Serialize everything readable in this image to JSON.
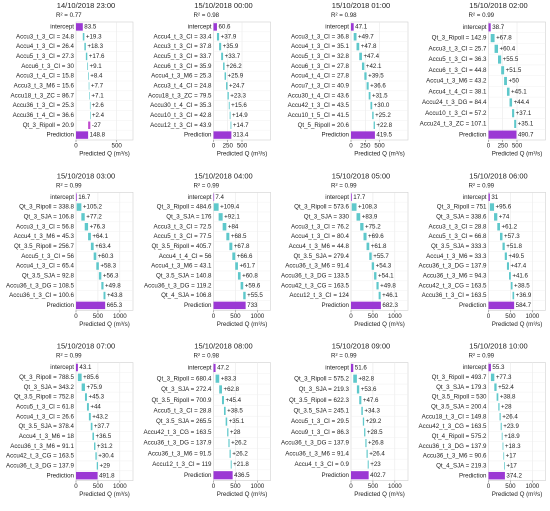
{
  "chart_data": [
    {
      "type": "waterfall",
      "title": "14/10/2018 23:00",
      "subtitle": "R² = 0.77",
      "x_label": "Predicted Q (m³/s)",
      "categories": [
        "intercept",
        "Accu3_t_3_CI = 24.8",
        "Accu4_t_3_CI = 26.4",
        "Accu5_t_3_CI = 27.3",
        "Accu6_t_3_CI = 30",
        "Accu3_t_4_CI = 15.8",
        "Accu3_t_3_M6 = 15.6",
        "Accu18_t_3_ZC = 86.7",
        "Accu36_t_3_CI = 25.3",
        "Accu36_t_4_CI = 36.6",
        "Qt_3_Ripoll = 20.9",
        "Prediction"
      ],
      "values": [
        83.5,
        19.3,
        18.3,
        17.6,
        9.1,
        8.4,
        7.7,
        7.1,
        2.6,
        2.4,
        -27,
        148.8
      ],
      "value_labels": [
        "83.5",
        "+19.3",
        "+18.3",
        "+17.6",
        "+9.1",
        "+8.4",
        "+7.7",
        "+7.1",
        "+2.6",
        "+2.4",
        "-27",
        "148.8"
      ],
      "xlim": [
        0,
        700
      ],
      "xticks": [
        0,
        500
      ],
      "total_color": "#9b38d4",
      "increase_color": "#5ec8cb",
      "decrease_color": "#c04ccf",
      "grid": true
    },
    {
      "type": "waterfall",
      "title": "15/10/2018 00:00",
      "subtitle": "R² = 0.98",
      "x_label": "Predicted Q (m³/s)",
      "categories": [
        "intercept",
        "Accu4_t_3_CI = 33.4",
        "Accu3_t_3_CI = 37.8",
        "Accu5_t_3_CI = 33.7",
        "Accu6_t_3_CI = 35.9",
        "Accu4_t_3_M6 = 25.3",
        "Accu3_t_4_CI = 24.8",
        "Accu18_t_3_ZC = 79.5",
        "Accu30_t_4_CI = 35.3",
        "Accu10_t_3_CI = 42.8",
        "Accu12_t_3_CI = 43.9",
        "Prediction"
      ],
      "values": [
        60.6,
        37.9,
        35.9,
        33.7,
        26.2,
        25.9,
        24.7,
        23.3,
        15.6,
        14.9,
        14.7,
        313.4
      ],
      "value_labels": [
        "60.6",
        "+37.9",
        "+35.9",
        "+33.7",
        "+26.2",
        "+25.9",
        "+24.7",
        "+23.3",
        "+15.6",
        "+14.9",
        "+14.7",
        "313.4"
      ],
      "xlim": [
        0,
        1000
      ],
      "xticks": [
        0,
        250,
        500
      ],
      "total_color": "#9b38d4",
      "increase_color": "#5ec8cb",
      "decrease_color": "#c04ccf",
      "grid": true
    },
    {
      "type": "waterfall",
      "title": "15/10/2018 01:00",
      "subtitle": "R² = 0.98",
      "x_label": "Predicted Q (m³/s)",
      "categories": [
        "intercept",
        "Accu3_t_3_CI = 36.8",
        "Accu4_t_3_CI = 35.1",
        "Accu5_t_3_CI = 32.8",
        "Accu6_t_3_CI = 27.8",
        "Accu4_t_4_CI = 27.8",
        "Accu7_t_3_CI = 40.9",
        "Accu30_t_4_CI = 43.6",
        "Accu42_t_3_CI = 43.5",
        "Accu10_t_5_CI = 41.5",
        "Qt_5_Ripoll = 20.6",
        "Prediction"
      ],
      "values": [
        47.1,
        49.7,
        47.8,
        47.4,
        42.1,
        39.5,
        36.6,
        31.5,
        30.0,
        25.2,
        22.8,
        419.5
      ],
      "value_labels": [
        "47.1",
        "+49.7",
        "+47.8",
        "+47.4",
        "+42.1",
        "+39.5",
        "+36.6",
        "+31.5",
        "+30.0",
        "+25.2",
        "+22.8",
        "419.5"
      ],
      "xlim": [
        0,
        1000
      ],
      "xticks": [
        0,
        250,
        500
      ],
      "total_color": "#9b38d4",
      "increase_color": "#5ec8cb",
      "decrease_color": "#c04ccf",
      "grid": true
    },
    {
      "type": "waterfall",
      "title": "15/10/2018 02:00",
      "subtitle": "R² = 0.99",
      "x_label": "Predicted Q (m³/s)",
      "categories": [
        "intercept",
        "Qt_3_Ripoll = 142.9",
        "Accu3_t_3_CI = 25.7",
        "Accu5_t_3_CI = 36.3",
        "Accu6_t_3_CI = 44.8",
        "Accu4_t_3_M6 = 43.2",
        "Accu4_t_4_CI = 38.1",
        "Accu24_t_3_DG = 84.4",
        "Accu10_t_3_CI = 57.2",
        "Accu24_t_3_ZC = 107.1",
        "Prediction"
      ],
      "values": [
        38.7,
        67.8,
        60.4,
        55.5,
        51.5,
        50,
        45.1,
        44.4,
        37.1,
        35.1,
        490.7
      ],
      "value_labels": [
        "38.7",
        "+67.8",
        "+60.4",
        "+55.5",
        "+51.5",
        "+50",
        "+45.1",
        "+44.4",
        "+37.1",
        "+35.1",
        "490.7"
      ],
      "xlim": [
        0,
        1000
      ],
      "xticks": [
        0,
        250,
        500
      ],
      "total_color": "#9b38d4",
      "increase_color": "#5ec8cb",
      "decrease_color": "#c04ccf",
      "grid": true
    },
    {
      "type": "waterfall",
      "title": "15/10/2018 03:00",
      "subtitle": "R² = 0.99",
      "x_label": "Predicted Q (m³/s)",
      "categories": [
        "intercept",
        "Qt_3_Ripoll = 338.8",
        "Qt_3_SJA = 106.8",
        "Accu3_t_3_CI = 56.8",
        "Accu4_t_3_M6 = 45.3",
        "Qt_3.5_Ripoll = 256.7",
        "Accu5_t_3_CI = 56",
        "Accu4_t_3_CI = 65.4",
        "Qt_3.5_SJA = 92.8",
        "Accu36_t_3_DG = 108.5",
        "Accu36_t_3_CI = 100.6",
        "Prediction"
      ],
      "values": [
        16.7,
        105.2,
        77.2,
        76.3,
        64.1,
        63.4,
        60.3,
        58.3,
        56.3,
        49.8,
        43.8,
        665.3
      ],
      "value_labels": [
        "16.7",
        "+105.2",
        "+77.2",
        "+76.3",
        "+64.1",
        "+63.4",
        "+60.3",
        "+58.3",
        "+56.3",
        "+49.8",
        "+43.8",
        "665.3"
      ],
      "xlim": [
        0,
        1300
      ],
      "xticks": [
        0,
        500,
        1000
      ],
      "total_color": "#9b38d4",
      "increase_color": "#5ec8cb",
      "decrease_color": "#c04ccf",
      "grid": true
    },
    {
      "type": "waterfall",
      "title": "15/10/2018 04:00",
      "subtitle": "R² = 0.99",
      "x_label": "Predicted Q (m³/s)",
      "categories": [
        "intercept",
        "Qt_3_Ripoll = 484.6",
        "Qt_3_SJA = 176",
        "Accu3_t_3_CI = 72.5",
        "Accu5_t_3_CI = 77.5",
        "Qt_3.5_Ripoll = 405.7",
        "Accu4_t_4_CI = 56",
        "Accu4_t_3_M6 = 43.1",
        "Qt_3.5_SJA = 140.8",
        "Accu36_t_3_DG = 119.2",
        "Qt_4_SJA = 106.8",
        "Prediction"
      ],
      "values": [
        7.4,
        109.4,
        92.1,
        84,
        68.5,
        67.8,
        66.6,
        61.7,
        60.8,
        59.6,
        55.5,
        733
      ],
      "value_labels": [
        "7.4",
        "+109.4",
        "+92.1",
        "+84",
        "+68.5",
        "+67.8",
        "+66.6",
        "+61.7",
        "+60.8",
        "+59.6",
        "+55.5",
        "733"
      ],
      "xlim": [
        0,
        1300
      ],
      "xticks": [
        0,
        500,
        1000
      ],
      "total_color": "#9b38d4",
      "increase_color": "#5ec8cb",
      "decrease_color": "#c04ccf",
      "grid": true
    },
    {
      "type": "waterfall",
      "title": "15/10/2018 05:00",
      "subtitle": "R² = 0.99",
      "x_label": "Predicted Q (m³/s)",
      "categories": [
        "intercept",
        "Qt_3_Ripoll = 573.6",
        "Qt_3_SJA = 330",
        "Accu3_t_3_CI = 76.2",
        "Accu4_t_3_CI = 80.4",
        "Accu4_t_3_M6 = 44.8",
        "Qt_3.5_SJA = 279.4",
        "Accu36_t_3_M6 = 91.4",
        "Accu36_t_3_DG = 133.5",
        "Accu42_t_3_CG = 163.5",
        "Accu12_t_3_CI = 124",
        "Prediction"
      ],
      "values": [
        17.7,
        108.3,
        83.9,
        75.2,
        69.6,
        61.8,
        55.7,
        54.3,
        54.1,
        49.8,
        46.1,
        682.3
      ],
      "value_labels": [
        "17.7",
        "+108.3",
        "+83.9",
        "+75.2",
        "+69.6",
        "+61.8",
        "+55.7",
        "+54.3",
        "+54.1",
        "+49.8",
        "+46.1",
        "682.3"
      ],
      "xlim": [
        0,
        1300
      ],
      "xticks": [
        0,
        500,
        1000
      ],
      "total_color": "#9b38d4",
      "increase_color": "#5ec8cb",
      "decrease_color": "#c04ccf",
      "grid": true
    },
    {
      "type": "waterfall",
      "title": "15/10/2018 06:00",
      "subtitle": "R² = 0.99",
      "x_label": "Predicted Q (m³/s)",
      "categories": [
        "intercept",
        "Qt_3_Ripoll = 751",
        "Qt_3_SJA = 338.6",
        "Accu3_t_3_CI = 28.8",
        "Accu5_t_3_CI = 66.8",
        "Qt_3.5_SJA = 333.3",
        "Accu4_t_3_M6 = 33.3",
        "Accu36_t_3_DG = 137.9",
        "Accu36_t_3_M6 = 94.3",
        "Accu42_t_3_CG = 163.5",
        "Accu36_t_3_CI = 163.5",
        "Prediction"
      ],
      "values": [
        31,
        95.6,
        74,
        61.2,
        57.3,
        51.8,
        49.5,
        47.4,
        41.6,
        38.5,
        36.9,
        584.7
      ],
      "value_labels": [
        "31",
        "+95.6",
        "+74",
        "+61.2",
        "+57.3",
        "+51.8",
        "+49.5",
        "+47.4",
        "+41.6",
        "+38.5",
        "+36.9",
        "584.7"
      ],
      "xlim": [
        0,
        1300
      ],
      "xticks": [
        0,
        500,
        1000
      ],
      "total_color": "#9b38d4",
      "increase_color": "#5ec8cb",
      "decrease_color": "#c04ccf",
      "grid": true
    },
    {
      "type": "waterfall",
      "title": "15/10/2018 07:00",
      "subtitle": "R² = 0.99",
      "x_label": "Predicted Q (m³/s)",
      "categories": [
        "intercept",
        "Qt_3_Ripoll = 788.5",
        "Qt_3_SJA = 343.2",
        "Qt_3.5_Ripoll = 752.8",
        "Accu5_t_3_CI = 61.8",
        "Accu4_t_3_CI = 26.6",
        "Qt_3.5_SJA = 378.4",
        "Accu4_t_3_M6 = 18",
        "Accu36_t_3_M6 = 91.1",
        "Accu42_t_3_CG = 163.5",
        "Accu36_t_3_DG = 137.9",
        "Prediction"
      ],
      "values": [
        43.1,
        85.6,
        75.9,
        45.3,
        44,
        43.2,
        37.7,
        36.5,
        31.2,
        30.4,
        29,
        491.8
      ],
      "value_labels": [
        "43.1",
        "+85.6",
        "+75.9",
        "+45.3",
        "+44",
        "+43.2",
        "+37.7",
        "+36.5",
        "+31.2",
        "+30.4",
        "+29",
        "491.8"
      ],
      "xlim": [
        0,
        1300
      ],
      "xticks": [
        0,
        500,
        1000
      ],
      "total_color": "#9b38d4",
      "increase_color": "#5ec8cb",
      "decrease_color": "#c04ccf",
      "grid": true
    },
    {
      "type": "waterfall",
      "title": "15/10/2018 08:00",
      "subtitle": "R² = 0.98",
      "x_label": "Predicted Q (m³/s)",
      "categories": [
        "intercept",
        "Qt_3_Ripoll = 680.4",
        "Qt_3_SJA = 272.4",
        "Qt_3.5_Ripoll = 700.9",
        "Accu5_t_3_CI = 28.8",
        "Qt_3.5_SJA = 265.5",
        "Accu42_t_3_CG = 163.5",
        "Accu36_t_3_DG = 137.9",
        "Accu36_t_3_M6 = 91.5",
        "Accu12_t_3_CI = 119",
        "Prediction"
      ],
      "values": [
        47.2,
        83.3,
        62.8,
        45.4,
        38.5,
        35.1,
        28,
        26.2,
        26.2,
        21.8,
        436.5
      ],
      "value_labels": [
        "47.2",
        "+83.3",
        "+62.8",
        "+45.4",
        "+38.5",
        "+35.1",
        "+28",
        "+26.2",
        "+26.2",
        "+21.8",
        "436.5"
      ],
      "xlim": [
        0,
        1300
      ],
      "xticks": [
        0,
        500,
        1000
      ],
      "total_color": "#9b38d4",
      "increase_color": "#5ec8cb",
      "decrease_color": "#c04ccf",
      "grid": true
    },
    {
      "type": "waterfall",
      "title": "15/10/2018 09:00",
      "subtitle": "R² = 0.99",
      "x_label": "Predicted Q (m³/s)",
      "categories": [
        "intercept",
        "Qt_3_Ripoll = 575.2",
        "Qt_3_SJA = 219.3",
        "Qt_3.5_Ripoll = 622.3",
        "Qt_3.5_SJA = 245.1",
        "Accu5_t_3_CI = 29.5",
        "Accu9_t_3_CI = 86.3",
        "Accu36_t_3_DG = 137.9",
        "Accu36_t_3_M6 = 91.4",
        "Accu4_t_3_CI = 0.9",
        "Prediction"
      ],
      "values": [
        51.6,
        82.8,
        53.6,
        47.6,
        34.3,
        29.2,
        28.5,
        26.8,
        26.4,
        23,
        402.7
      ],
      "value_labels": [
        "51.6",
        "+82.8",
        "+53.6",
        "+47.6",
        "+34.3",
        "+29.2",
        "+28.5",
        "+26.8",
        "+26.4",
        "+23",
        "402.7"
      ],
      "xlim": [
        0,
        1300
      ],
      "xticks": [
        0,
        500,
        1000
      ],
      "total_color": "#9b38d4",
      "increase_color": "#5ec8cb",
      "decrease_color": "#c04ccf",
      "grid": true
    },
    {
      "type": "waterfall",
      "title": "15/10/2018 10:00",
      "subtitle": "R² = 0.99",
      "x_label": "Predicted Q (m³/s)",
      "categories": [
        "intercept",
        "Qt_3_Ripoll = 493.7",
        "Qt_3_SJA = 179.3",
        "Qt_3.5_Ripoll = 530",
        "Qt_3.5_SJA = 200.4",
        "Accu18_t_3_CI = 149.8",
        "Accu42_t_3_CG = 163.5",
        "Qt_4_Ripoll = 575.2",
        "Accu36_t_3_DG = 137.9",
        "Accu36_t_3_M6 = 90.6",
        "Qt_4_SJA = 219.3",
        "Prediction"
      ],
      "values": [
        55.3,
        77.3,
        52.4,
        38.8,
        28,
        26.4,
        23.9,
        18.9,
        18.3,
        17,
        17,
        374.2
      ],
      "value_labels": [
        "55.3",
        "+77.3",
        "+52.4",
        "+38.8",
        "+28",
        "+26.4",
        "+23.9",
        "+18.9",
        "+18.3",
        "+17",
        "+17",
        "374.2"
      ],
      "xlim": [
        0,
        1300
      ],
      "xticks": [
        0,
        500,
        1000
      ],
      "total_color": "#9b38d4",
      "increase_color": "#5ec8cb",
      "decrease_color": "#c04ccf",
      "grid": true
    }
  ]
}
